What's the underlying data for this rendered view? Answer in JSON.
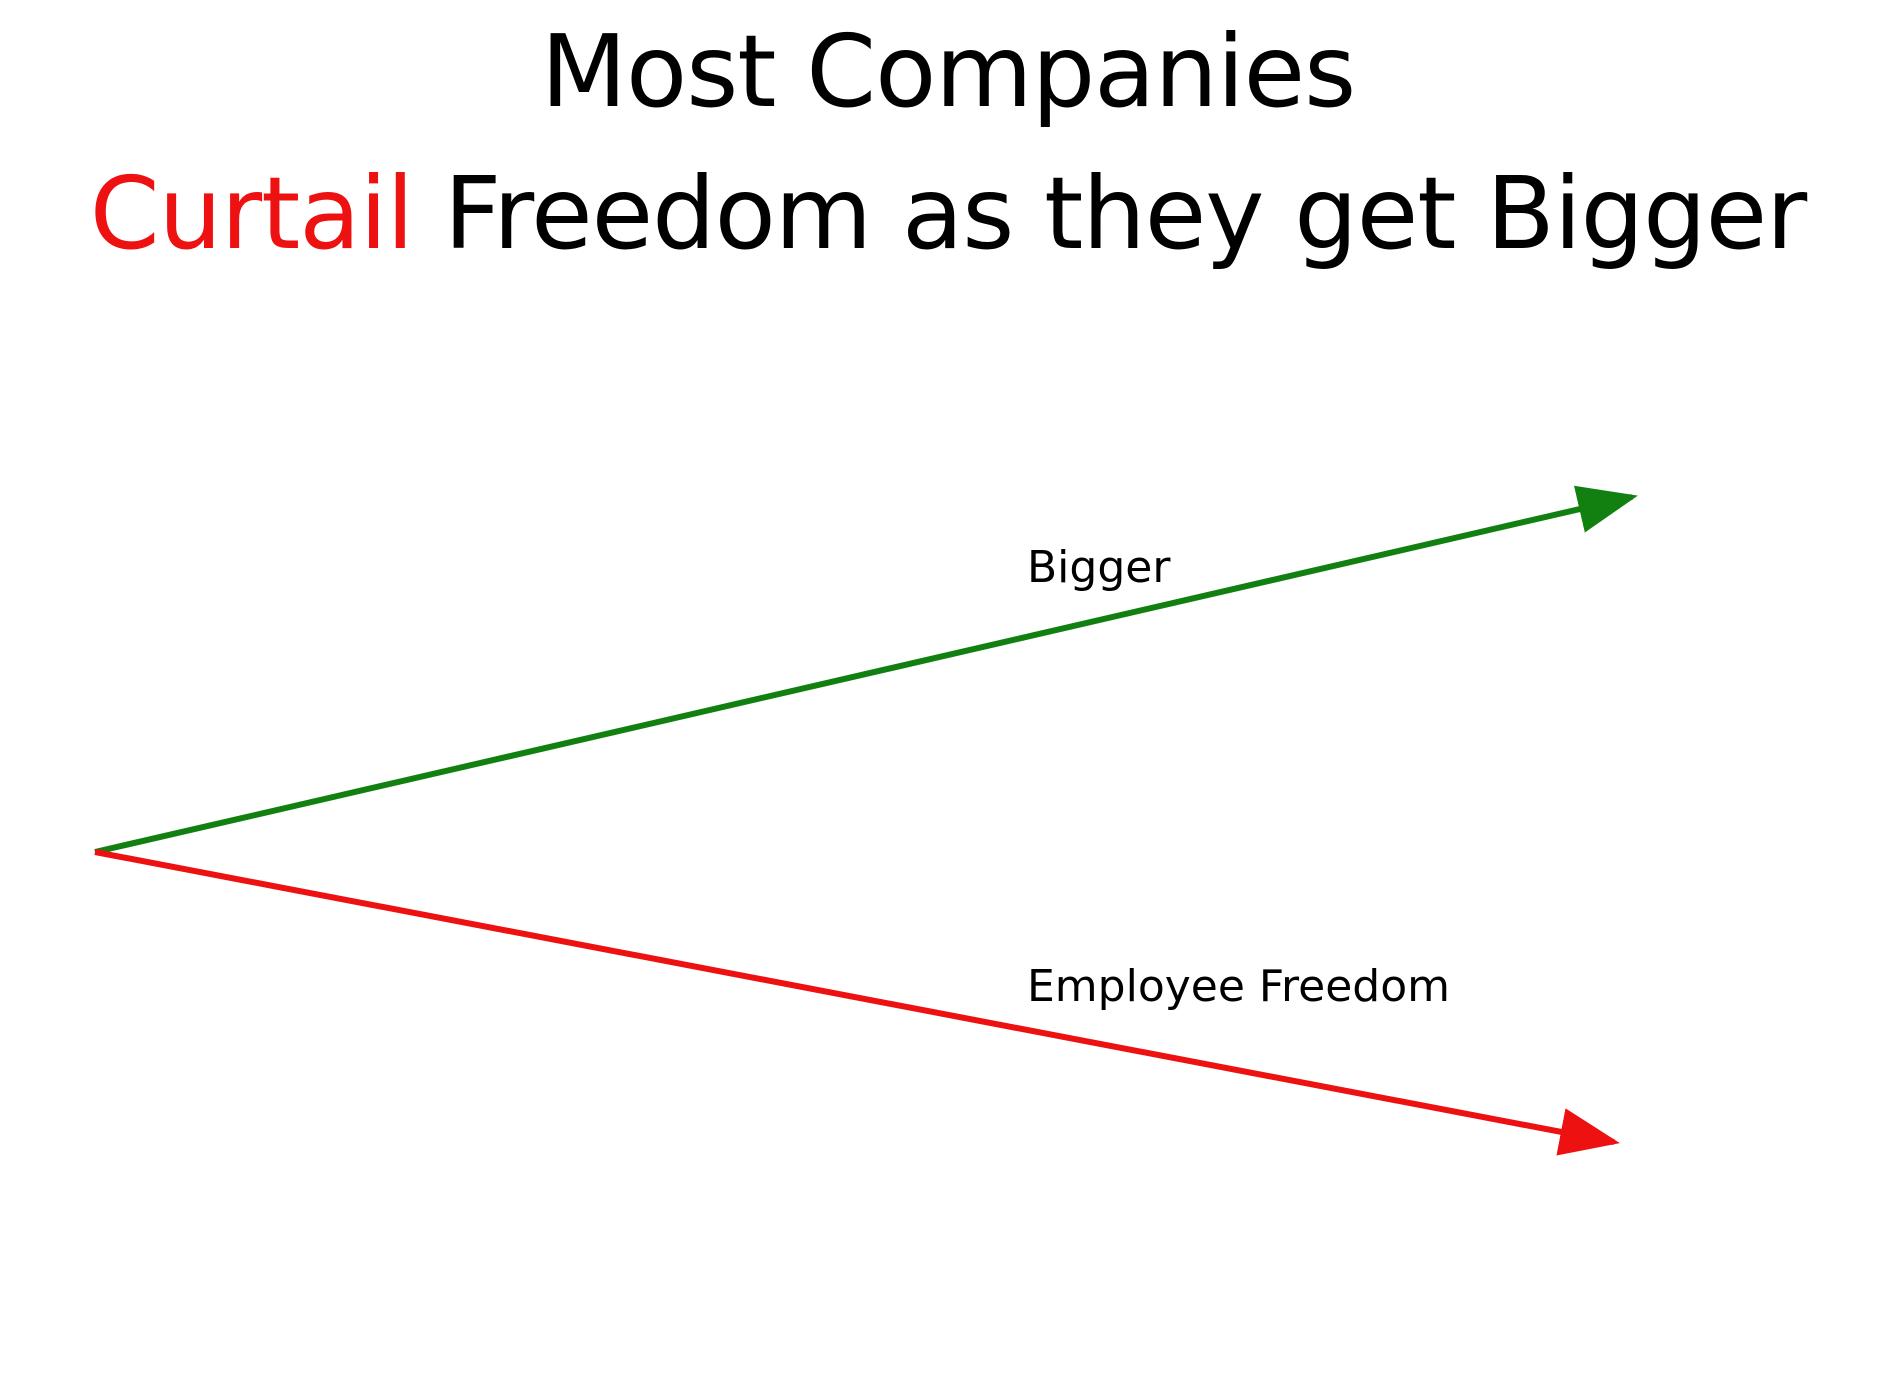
{
  "title": {
    "line1": "Most Companies",
    "line2_highlight": "Curtail",
    "line2_rest": " Freedom as they get Bigger"
  },
  "arrows": [
    {
      "label": "Bigger",
      "color": "#118011",
      "direction": "up"
    },
    {
      "label": "Employee Freedom",
      "color": "#ee1111",
      "direction": "down"
    }
  ],
  "colors": {
    "highlight": "#ee1111",
    "text": "#000000",
    "background": "#ffffff"
  }
}
